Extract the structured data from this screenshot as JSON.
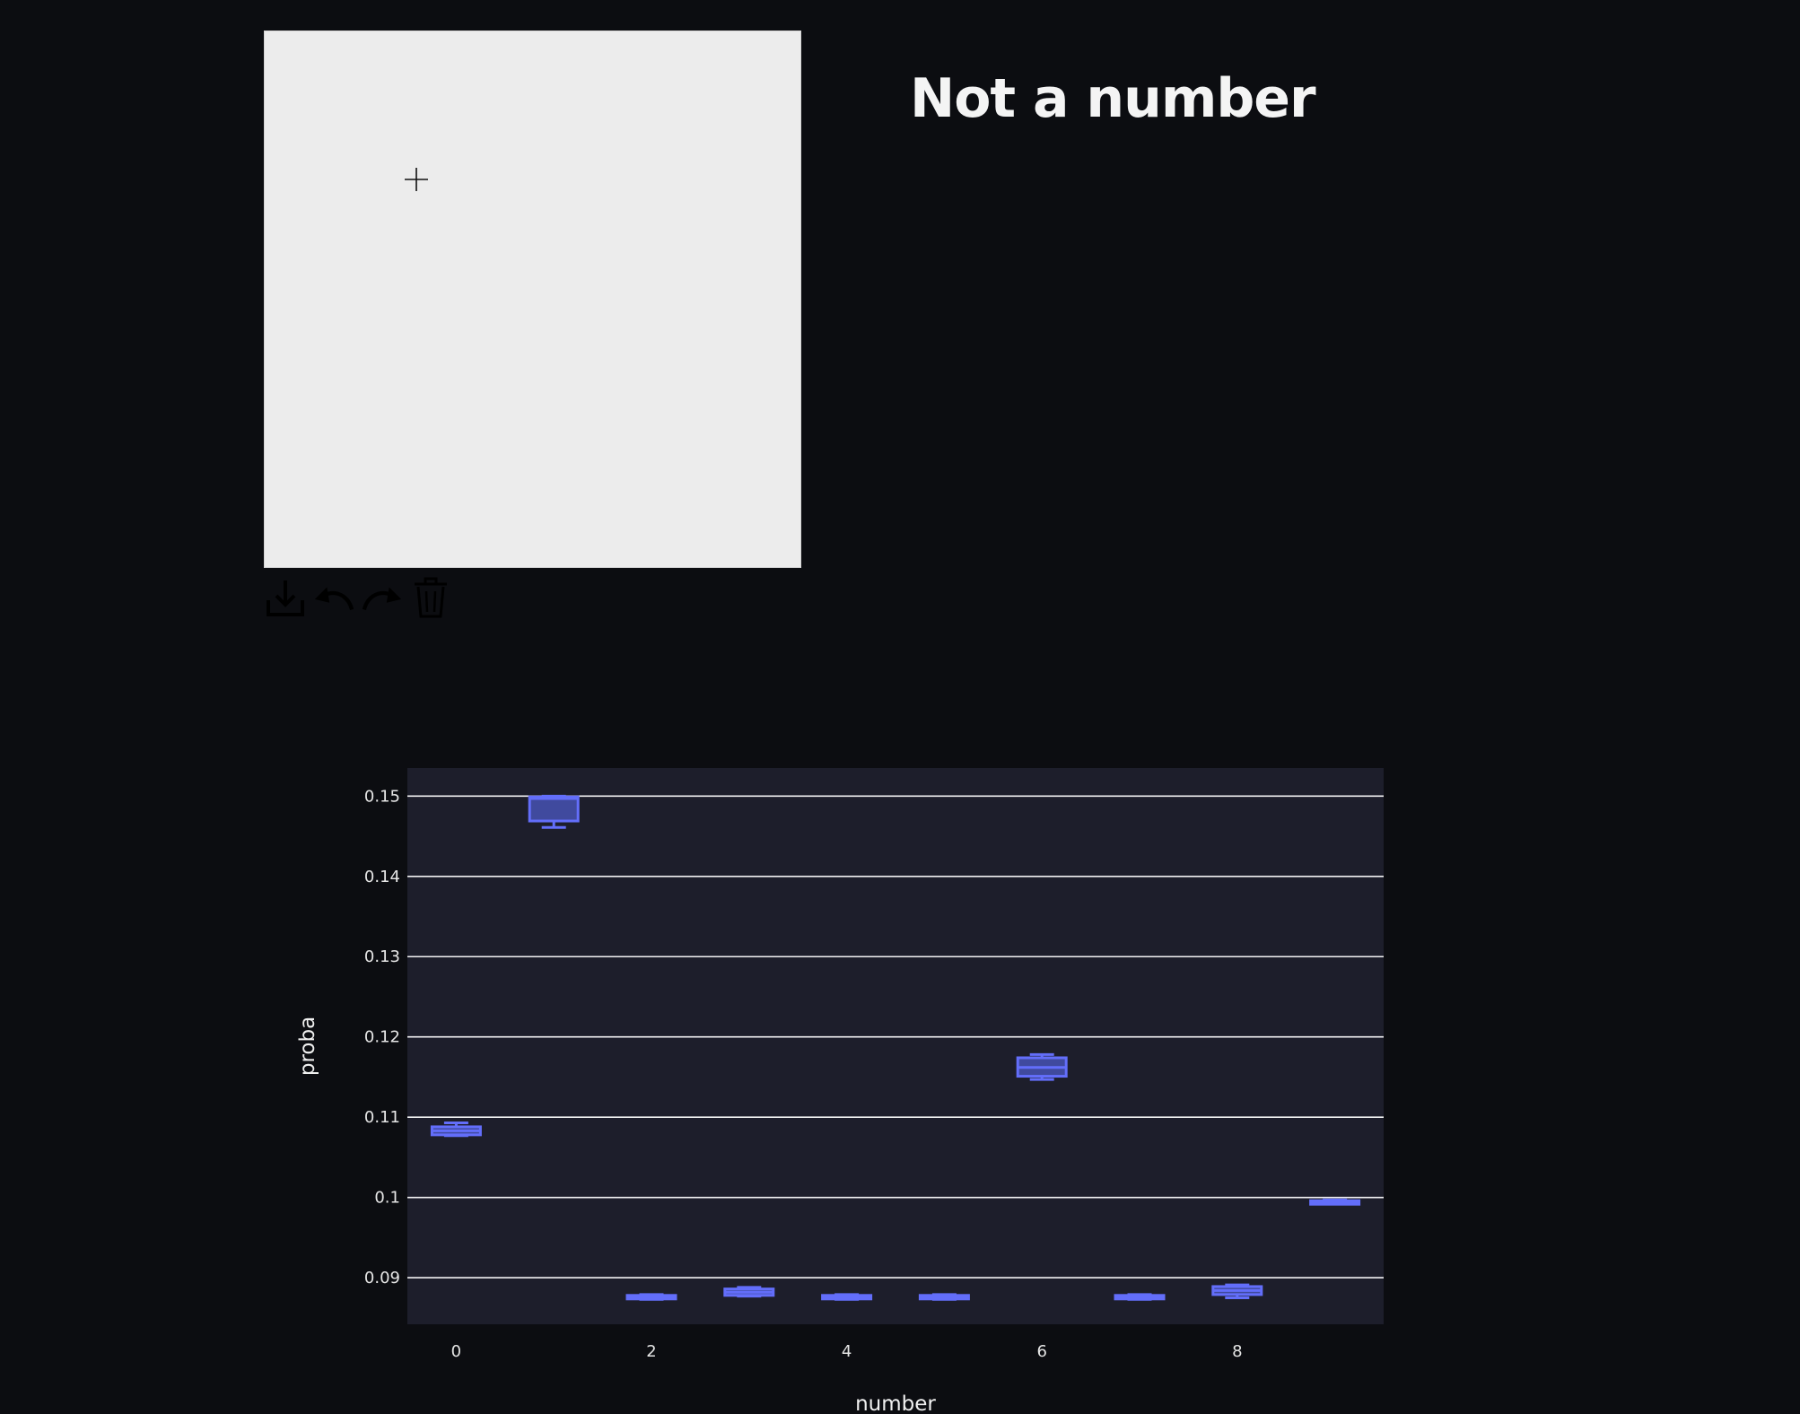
{
  "canvas": {
    "background": "#ececec",
    "cursor_icon": "crosshair-icon"
  },
  "toolbar": {
    "buttons": [
      {
        "name": "download-button",
        "icon": "download-icon"
      },
      {
        "name": "undo-button",
        "icon": "undo-icon"
      },
      {
        "name": "redo-button",
        "icon": "redo-icon"
      },
      {
        "name": "delete-button",
        "icon": "trash-icon"
      }
    ],
    "icon_color": "#000000"
  },
  "result": {
    "title": "Not a number",
    "color": "#f4f4f4"
  },
  "colors": {
    "page_background": "#0c0d11",
    "plot_background": "#1d1e2b",
    "grid": "#ffffff",
    "box": "#636efa",
    "box_fill": "#404a9e"
  },
  "chart_data": {
    "type": "box",
    "xlabel": "number",
    "ylabel": "proba",
    "xlim": [
      -0.5,
      9.5
    ],
    "ylim": [
      0.0842,
      0.1535
    ],
    "x_ticks": [
      0,
      2,
      4,
      6,
      8
    ],
    "y_ticks": [
      0.09,
      0.1,
      0.11,
      0.12,
      0.13,
      0.14,
      0.15
    ],
    "y_tick_labels": [
      "0.09",
      "0.1",
      "0.11",
      "0.12",
      "0.13",
      "0.14",
      "0.15"
    ],
    "grid": true,
    "boxes": [
      {
        "x": 0,
        "min": 0.1077,
        "q1": 0.1078,
        "median": 0.1083,
        "q3": 0.1088,
        "max": 0.1093
      },
      {
        "x": 1,
        "min": 0.1461,
        "q1": 0.1469,
        "median": 0.1497,
        "q3": 0.1499,
        "max": 0.15
      },
      {
        "x": 2,
        "min": 0.0873,
        "q1": 0.0874,
        "median": 0.0876,
        "q3": 0.0878,
        "max": 0.0879
      },
      {
        "x": 3,
        "min": 0.0877,
        "q1": 0.0878,
        "median": 0.0882,
        "q3": 0.0886,
        "max": 0.0888
      },
      {
        "x": 4,
        "min": 0.0873,
        "q1": 0.0874,
        "median": 0.0876,
        "q3": 0.0878,
        "max": 0.0879
      },
      {
        "x": 5,
        "min": 0.0873,
        "q1": 0.0874,
        "median": 0.0876,
        "q3": 0.0878,
        "max": 0.0879
      },
      {
        "x": 6,
        "min": 0.1147,
        "q1": 0.1151,
        "median": 0.1162,
        "q3": 0.1174,
        "max": 0.1178
      },
      {
        "x": 7,
        "min": 0.0873,
        "q1": 0.0874,
        "median": 0.0876,
        "q3": 0.0878,
        "max": 0.0879
      },
      {
        "x": 8,
        "min": 0.0875,
        "q1": 0.0879,
        "median": 0.0884,
        "q3": 0.0889,
        "max": 0.0891
      },
      {
        "x": 9,
        "min": 0.0992,
        "q1": 0.0993,
        "median": 0.0994,
        "q3": 0.0996,
        "max": 0.0997
      }
    ]
  }
}
